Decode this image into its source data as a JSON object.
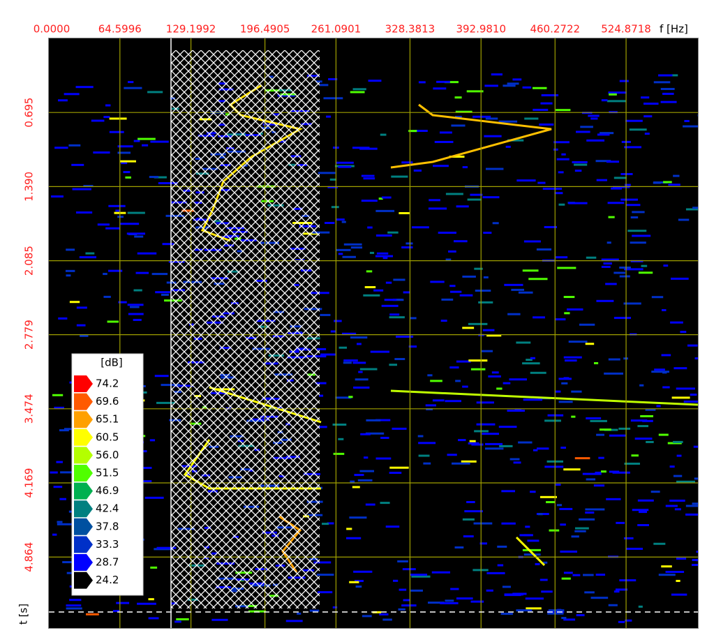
{
  "chart_data": {
    "type": "heatmap",
    "xlabel": "f [Hz]",
    "ylabel": "t [s]",
    "xlim": [
      0,
      590.2
    ],
    "ylim": [
      0,
      5.53
    ],
    "xticks": [
      {
        "value": 0,
        "label": "0.0000"
      },
      64.5996,
      129.1992,
      196.4905,
      261.0901,
      328.3813,
      {
        "value": 392.981,
        "label": "392.9810"
      },
      460.2722,
      524.8718
    ],
    "yticks": [
      0.695,
      {
        "value": 1.39,
        "label": "1.390"
      },
      2.085,
      2.779,
      3.474,
      4.169,
      4.864
    ],
    "grid": true,
    "grid_color": "#a0a000",
    "colorbar": {
      "title": "[dB]",
      "levels": [
        74.2,
        69.6,
        65.1,
        60.5,
        {
          "value": 56,
          "label": "56.0"
        },
        51.5,
        46.9,
        42.4,
        37.8,
        33.3,
        28.7,
        24.2
      ],
      "colors": [
        "#ff0000",
        "#ff5a00",
        "#ffa000",
        "#ffff00",
        "#b4ff00",
        "#50ff00",
        "#00b050",
        "#008080",
        "#0050a0",
        "#0030c8",
        "#0000ff",
        "#000000"
      ]
    }
  }
}
